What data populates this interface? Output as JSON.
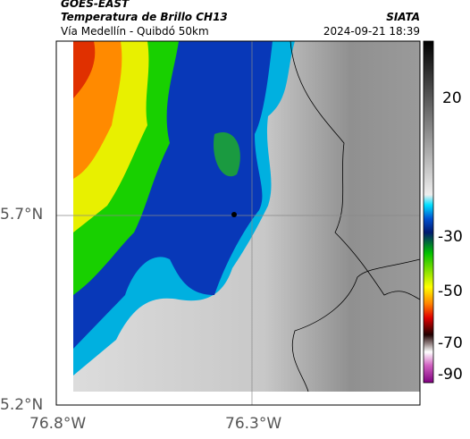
{
  "header": {
    "source": "GOES-EAST",
    "product": "Temperatura de Brillo CH13",
    "location": "Vía Medellín - Quibdó 50km",
    "agency": "SIATA",
    "timestamp": "2024-09-21 18:39"
  },
  "axes": {
    "lat_labels": [
      "5.7°N",
      "5.2°N"
    ],
    "lon_labels": [
      "76.8°W",
      "76.3°W"
    ]
  },
  "colorbar": {
    "tick_labels": [
      "20",
      "-30",
      "-50",
      "-70",
      "-90"
    ]
  }
}
